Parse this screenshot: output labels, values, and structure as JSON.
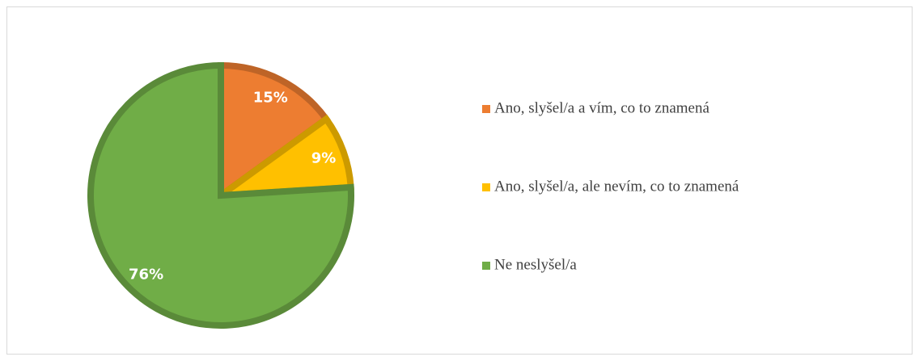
{
  "chart_data": {
    "type": "pie",
    "categories": [
      "Ano, slyšel/a a vím, co to znamená",
      "Ano, slyšel/a, ale nevím, co to znamená",
      "Ne neslyšel/a"
    ],
    "values": [
      15,
      9,
      76
    ],
    "value_labels": [
      "15%",
      "9%",
      "76%"
    ],
    "colors": [
      "#ed7d31",
      "#ffc000",
      "#70ad47"
    ],
    "legend": "right"
  }
}
